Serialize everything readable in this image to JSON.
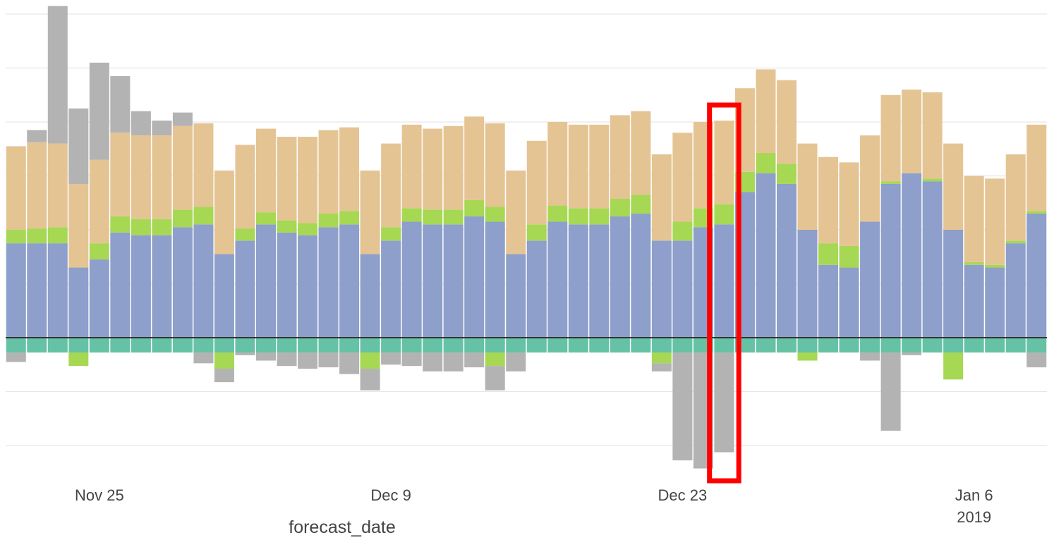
{
  "chart_data": {
    "type": "bar",
    "stacked": true,
    "xlabel": "forecast_date",
    "x_tick_labels": [
      {
        "day_index": 4,
        "label": "Nov 25",
        "sublabel": ""
      },
      {
        "day_index": 18,
        "label": "Dec 9",
        "sublabel": ""
      },
      {
        "day_index": 32,
        "label": "Dec 23",
        "sublabel": ""
      },
      {
        "day_index": 46,
        "label": "Jan 6",
        "sublabel": "2019"
      }
    ],
    "ylim": [
      -6,
      15
    ],
    "gridlines_y": [
      -4,
      -2,
      2,
      4,
      6,
      8,
      10,
      12
    ],
    "grid": true,
    "zero_line": true,
    "highlight": {
      "day_index": 34,
      "color": "#ff0000"
    },
    "series": [
      {
        "key": "base",
        "color": "#8d9fca",
        "values": [
          3.5,
          3.5,
          3.5,
          2.6,
          2.9,
          3.9,
          3.8,
          3.8,
          4.1,
          4.2,
          3.1,
          3.6,
          4.2,
          3.9,
          3.8,
          4.1,
          4.2,
          3.1,
          3.6,
          4.3,
          4.2,
          4.2,
          4.5,
          4.3,
          3.1,
          3.6,
          4.3,
          4.2,
          4.2,
          4.5,
          4.6,
          3.6,
          3.6,
          4.1,
          4.2,
          5.4,
          6.1,
          5.7,
          4.0,
          2.7,
          2.6,
          4.3,
          5.7,
          6.1,
          5.8,
          4.0,
          2.7,
          2.6,
          3.5,
          4.6
        ]
      },
      {
        "key": "mid-green",
        "color": "#a6d854",
        "values": [
          0.5,
          0.55,
          0.6,
          0,
          0.6,
          0.6,
          0.6,
          0.6,
          0.65,
          0.65,
          0,
          0.45,
          0.45,
          0.45,
          0.45,
          0.5,
          0.5,
          0,
          0.5,
          0.5,
          0.55,
          0.55,
          0.6,
          0.55,
          0,
          0.6,
          0.6,
          0.6,
          0.6,
          0.65,
          0.7,
          0,
          0.7,
          0.7,
          0.75,
          0.75,
          0.75,
          0.75,
          0,
          0.8,
          0.8,
          0,
          0.1,
          0,
          0.1,
          0,
          0.1,
          0.1,
          0.1,
          0.1
        ]
      },
      {
        "key": "upper",
        "color": "#e5c494",
        "values": [
          3.1,
          3.2,
          3.1,
          3.1,
          3.1,
          3.1,
          3.1,
          3.1,
          3.1,
          3.1,
          3.1,
          3.1,
          3.1,
          3.1,
          3.2,
          3.1,
          3.1,
          3.1,
          3.1,
          3.1,
          3.0,
          3.1,
          3.1,
          3.1,
          3.1,
          3.1,
          3.1,
          3.1,
          3.1,
          3.1,
          3.1,
          3.2,
          3.3,
          3.2,
          3.1,
          3.1,
          3.1,
          3.1,
          3.2,
          3.2,
          3.1,
          3.2,
          3.2,
          3.1,
          3.2,
          3.2,
          3.2,
          3.2,
          3.2,
          3.2
        ]
      },
      {
        "key": "top-gray",
        "color": "#b3b3b3",
        "values": [
          0,
          0.45,
          5.1,
          2.8,
          3.6,
          2.1,
          0.9,
          0.55,
          0.5,
          0,
          0,
          0,
          0,
          0,
          0,
          0,
          0,
          0,
          0,
          0,
          0,
          0,
          0,
          0,
          0,
          0,
          0,
          0,
          0,
          0,
          0,
          0,
          0,
          0,
          0,
          0,
          0,
          0,
          0,
          0,
          0,
          0,
          0,
          0,
          0,
          0,
          0,
          0,
          0,
          0
        ]
      },
      {
        "key": "neg-teal",
        "color": "#66c2a5",
        "values": [
          -0.55,
          -0.55,
          -0.55,
          -0.55,
          -0.55,
          -0.55,
          -0.55,
          -0.55,
          -0.55,
          -0.55,
          -0.55,
          -0.55,
          -0.55,
          -0.55,
          -0.55,
          -0.55,
          -0.55,
          -0.55,
          -0.55,
          -0.55,
          -0.55,
          -0.55,
          -0.55,
          -0.55,
          -0.55,
          -0.55,
          -0.55,
          -0.55,
          -0.55,
          -0.55,
          -0.55,
          -0.55,
          -0.55,
          -0.55,
          -0.55,
          -0.55,
          -0.55,
          -0.55,
          -0.55,
          -0.55,
          -0.55,
          -0.55,
          -0.55,
          -0.55,
          -0.55,
          -0.55,
          -0.55,
          -0.55,
          -0.55,
          -0.55
        ]
      },
      {
        "key": "neg-green",
        "color": "#a6d854",
        "values": [
          0,
          0,
          0,
          -0.5,
          0,
          0,
          0,
          0,
          0,
          0,
          -0.6,
          0,
          0,
          0,
          0,
          0,
          0,
          -0.6,
          0,
          0,
          0,
          0,
          0,
          -0.5,
          0,
          0,
          0,
          0,
          0,
          0,
          0,
          -0.4,
          0,
          0,
          0,
          0,
          0,
          0,
          -0.3,
          0,
          0,
          0,
          0,
          0,
          0,
          -1.0,
          0,
          0,
          0,
          0
        ]
      },
      {
        "key": "neg-gray",
        "color": "#b3b3b3",
        "values": [
          -0.35,
          0,
          0,
          0,
          0,
          0,
          0,
          0,
          0,
          -0.4,
          -0.5,
          -0.1,
          -0.3,
          -0.5,
          -0.6,
          -0.55,
          -0.8,
          -0.8,
          -0.45,
          -0.5,
          -0.7,
          -0.7,
          -0.55,
          -0.9,
          -0.7,
          0,
          0,
          0,
          0,
          0,
          0,
          -0.3,
          -4.0,
          -4.3,
          -3.7,
          0,
          0,
          0,
          0,
          0,
          0,
          -0.3,
          -2.9,
          -0.1,
          0,
          0,
          0,
          0,
          0,
          -0.55
        ]
      }
    ]
  }
}
